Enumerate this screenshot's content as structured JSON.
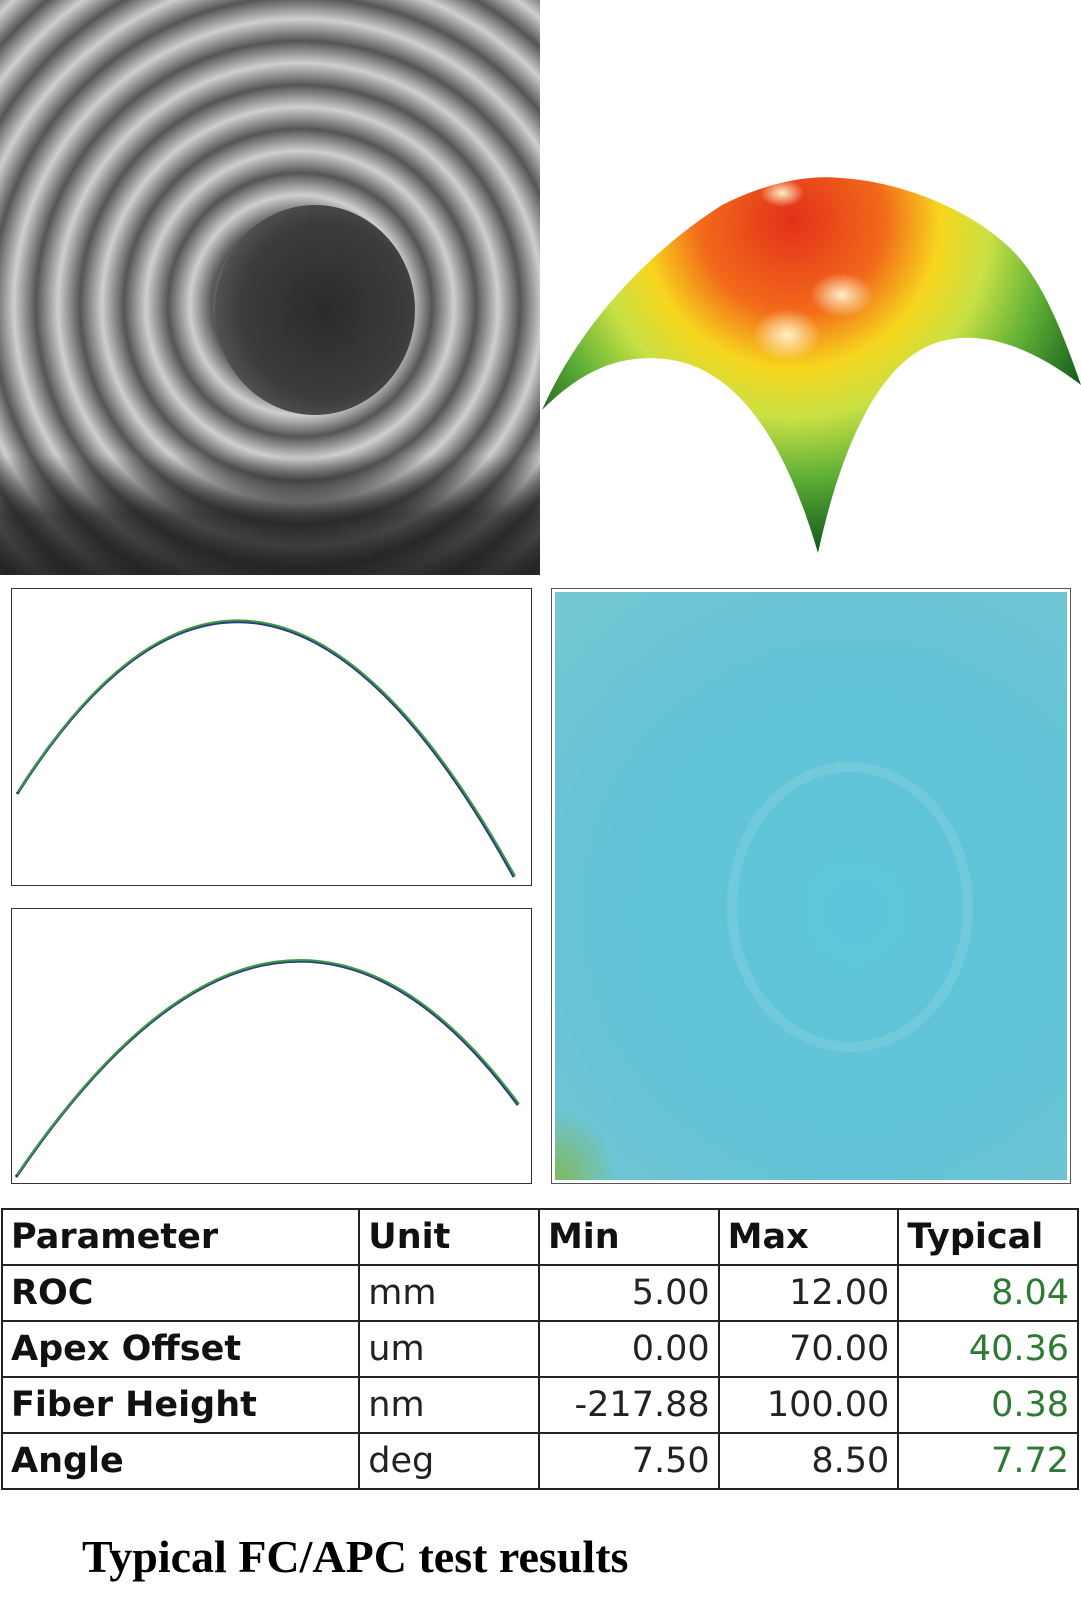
{
  "figure": {
    "caption": "Typical FC/APC test results",
    "panels": {
      "fringe": "interferogram",
      "surface": "3d-surface",
      "profile_top": "profile",
      "profile_bottom": "profile",
      "residual": "residual-map"
    },
    "colors": {
      "typical_values": "#2e7a34",
      "profile_fit": "#3c9a3c",
      "profile_measured": "#2a3a8a",
      "residual_map": "#5ec1d8",
      "surface_peak": "#e8401a",
      "surface_mid": "#f3e51e",
      "surface_edge": "#1f6e1f"
    }
  },
  "table": {
    "headers": [
      "Parameter",
      "Unit",
      "Min",
      "Max",
      "Typical"
    ],
    "rows": [
      {
        "parameter": "ROC",
        "unit": "mm",
        "min": "5.00",
        "max": "12.00",
        "typical": "8.04"
      },
      {
        "parameter": "Apex Offset",
        "unit": "um",
        "min": "0.00",
        "max": "70.00",
        "typical": "40.36"
      },
      {
        "parameter": "Fiber Height",
        "unit": "nm",
        "min": "-217.88",
        "max": "100.00",
        "typical": "0.38"
      },
      {
        "parameter": "Angle",
        "unit": "deg",
        "min": "7.50",
        "max": "8.50",
        "typical": "7.72"
      }
    ]
  }
}
